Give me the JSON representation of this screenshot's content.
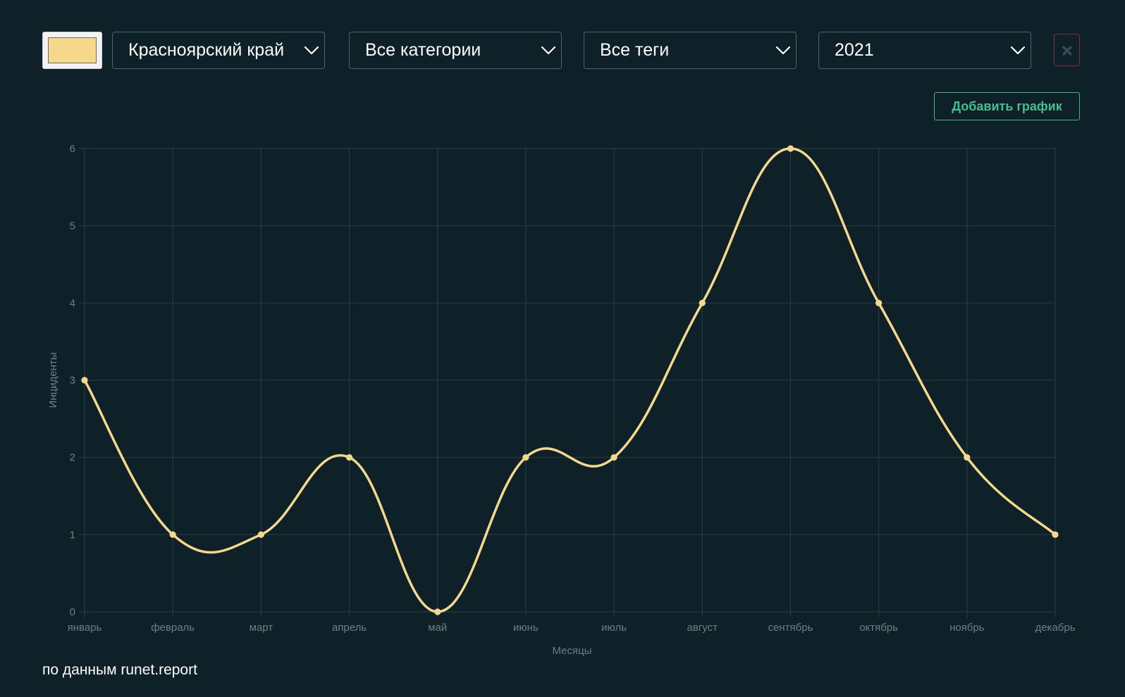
{
  "filters": {
    "swatch_color": "#f6d88c",
    "region": "Красноярский край",
    "category": "Все категории",
    "tags": "Все теги",
    "year": "2021"
  },
  "toolbar": {
    "add_chart_label": "Добавить график"
  },
  "footer": {
    "source_text": "по данным runet.report"
  },
  "chart_data": {
    "type": "line",
    "xlabel": "Месяцы",
    "ylabel": "Инциденты",
    "categories": [
      "январь",
      "февраль",
      "март",
      "апрель",
      "май",
      "июнь",
      "июль",
      "август",
      "сентябрь",
      "октябрь",
      "ноябрь",
      "декабрь"
    ],
    "series": [
      {
        "values": [
          3,
          1,
          1,
          2,
          0,
          2,
          2,
          4,
          6,
          4,
          2,
          1
        ],
        "color": "#f6d88c"
      }
    ],
    "ylim": [
      0,
      6
    ],
    "yticks": [
      0,
      1,
      2,
      3,
      4,
      5,
      6
    ],
    "grid": true,
    "smooth": true,
    "colors": {
      "grid": "#2a3a40",
      "tick_label": "#6f7f85",
      "axis_title": "#6f7f85"
    }
  }
}
